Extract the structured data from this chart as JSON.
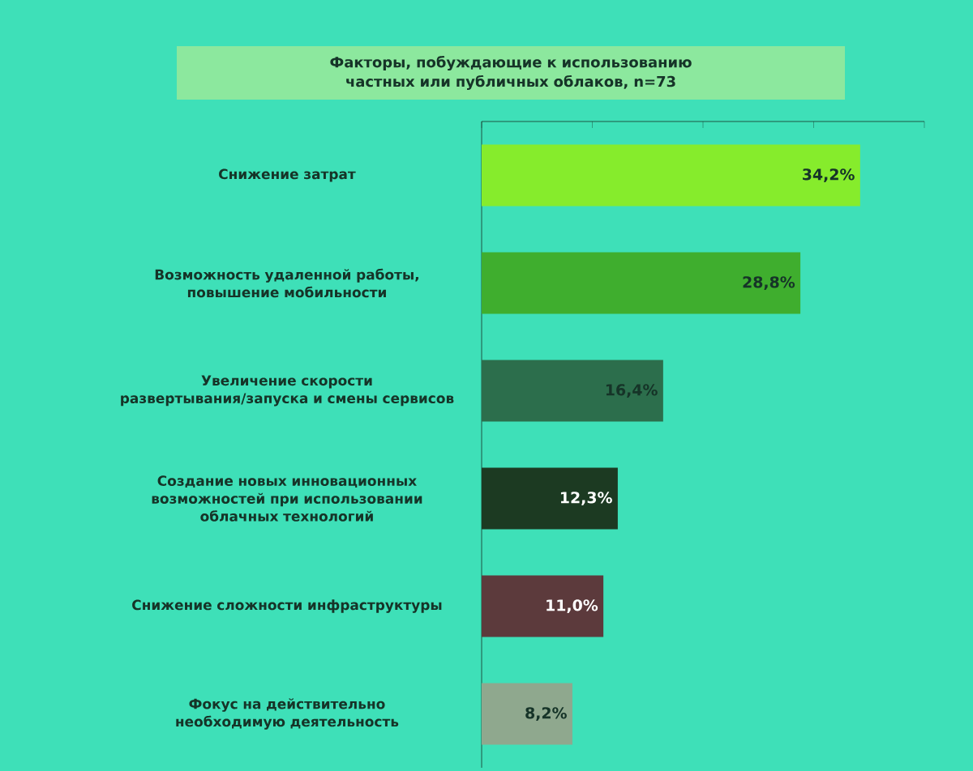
{
  "chart_data": {
    "type": "bar",
    "orientation": "horizontal",
    "title": "Факторы, побуждающие к использованию частных или публичных облаков, n=73",
    "categories": [
      "Снижение затрат",
      "Возможность удаленной работы, повышение мобильности",
      "Увеличение скорости развертывания/запуска и смены сервисов",
      "Создание новых инновационных возможностей при использовании облачных технологий",
      "Снижение сложности инфраструктуры",
      "Фокус на действительно необходимую деятельность"
    ],
    "values": [
      34.2,
      28.8,
      16.4,
      12.3,
      11.0,
      8.2
    ],
    "value_labels": [
      "34,2%",
      "28,8%",
      "16,4%",
      "12,3%",
      "11,0%",
      "8,2%"
    ],
    "colors": [
      "#86ec2c",
      "#3fae2e",
      "#2c6e4c",
      "#1c3a22",
      "#5c3a3c",
      "#8fa88e"
    ],
    "xlim": [
      0,
      40
    ],
    "xticks": [
      {
        "value": 0,
        "label": null
      },
      {
        "value": 10,
        "label": null
      },
      {
        "value": 20,
        "label": null
      },
      {
        "value": 30,
        "label": null
      },
      {
        "value": 40,
        "label": null
      }
    ],
    "tick_labels": "y",
    "grid": false
  }
}
